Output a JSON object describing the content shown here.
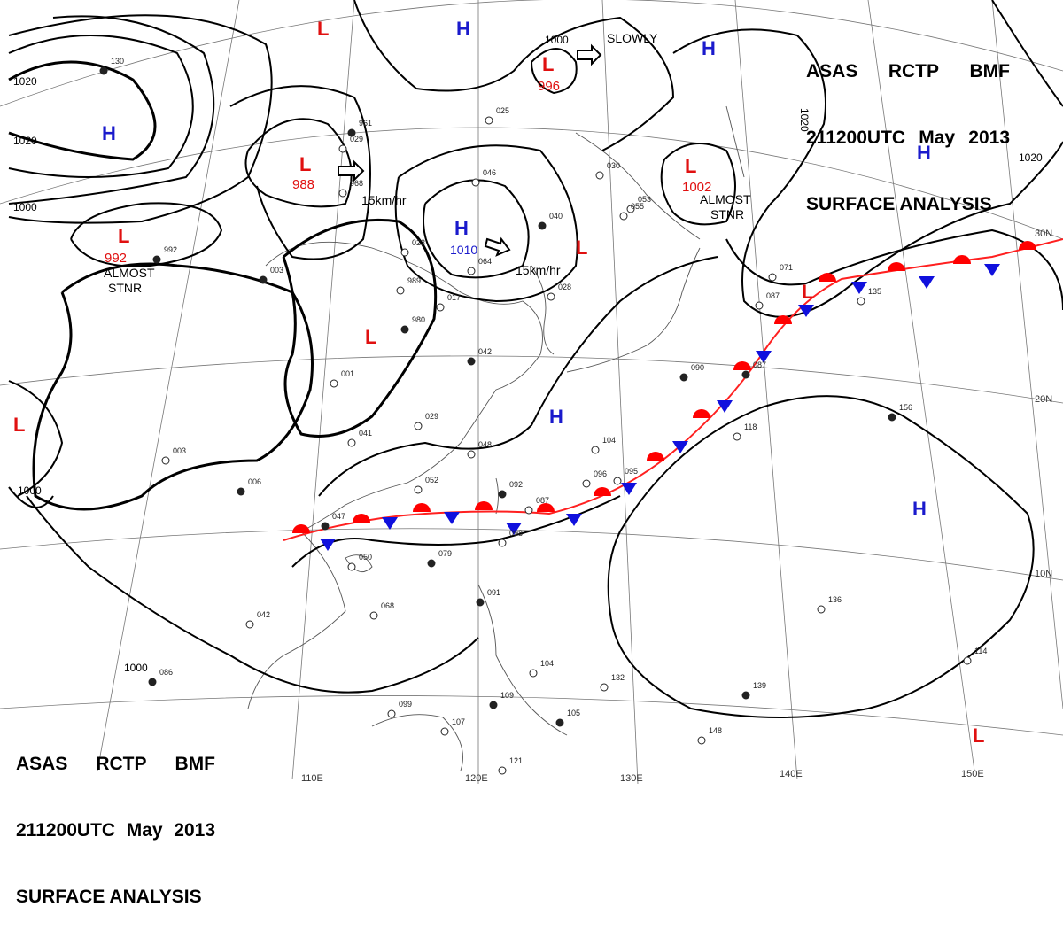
{
  "header": {
    "line1": [
      "ASAS",
      "RCTP",
      "BMF"
    ],
    "line2": [
      "211200UTC",
      "May",
      "2013"
    ],
    "line3": "SURFACE ANALYSIS"
  },
  "colors": {
    "high": "#1a1acc",
    "low": "#e01010",
    "front_warm": "#ff0000",
    "front_cold": "#1010dd",
    "isobar": "#000000",
    "grid": "#888888"
  },
  "lon_labels": [
    "110E",
    "120E",
    "130E",
    "140E",
    "150E"
  ],
  "lat_labels": [
    "30N",
    "20N",
    "10N"
  ],
  "isobar_labels": [
    "1020",
    "1020",
    "1000",
    "1000",
    "1020",
    "1020",
    "1000"
  ],
  "pressure_centers": {
    "highs": [
      "H",
      "H",
      "H",
      "H",
      "H",
      "H"
    ],
    "lows": [
      "L",
      "L",
      "L",
      "L",
      "L",
      "L",
      "L",
      "L",
      "L",
      "L"
    ],
    "values": [
      "988",
      "992",
      "996",
      "1002",
      "1010"
    ]
  },
  "annotations": {
    "almost_stnr_1": [
      "ALMOST",
      "STNR"
    ],
    "almost_stnr_2": [
      "ALMOST",
      "STNR"
    ],
    "speed1": "15km/hr",
    "speed2": "15km/hr",
    "slowly": "SLOWLY",
    "isobar_1000_top": "1000"
  },
  "station_labels": [
    "130",
    "029",
    "968",
    "961",
    "025",
    "046",
    "040",
    "053",
    "023",
    "992",
    "030",
    "055",
    "003",
    "989",
    "017",
    "980",
    "001",
    "029",
    "042",
    "048",
    "052",
    "092",
    "087",
    "098",
    "079",
    "050",
    "095",
    "091",
    "068",
    "042",
    "086",
    "099",
    "107",
    "109",
    "104",
    "132",
    "105",
    "121",
    "096",
    "087",
    "104",
    "118",
    "156",
    "135",
    "136",
    "139",
    "148",
    "114",
    "090",
    "071",
    "087",
    "047",
    "003",
    "041",
    "006",
    "028",
    "064"
  ]
}
